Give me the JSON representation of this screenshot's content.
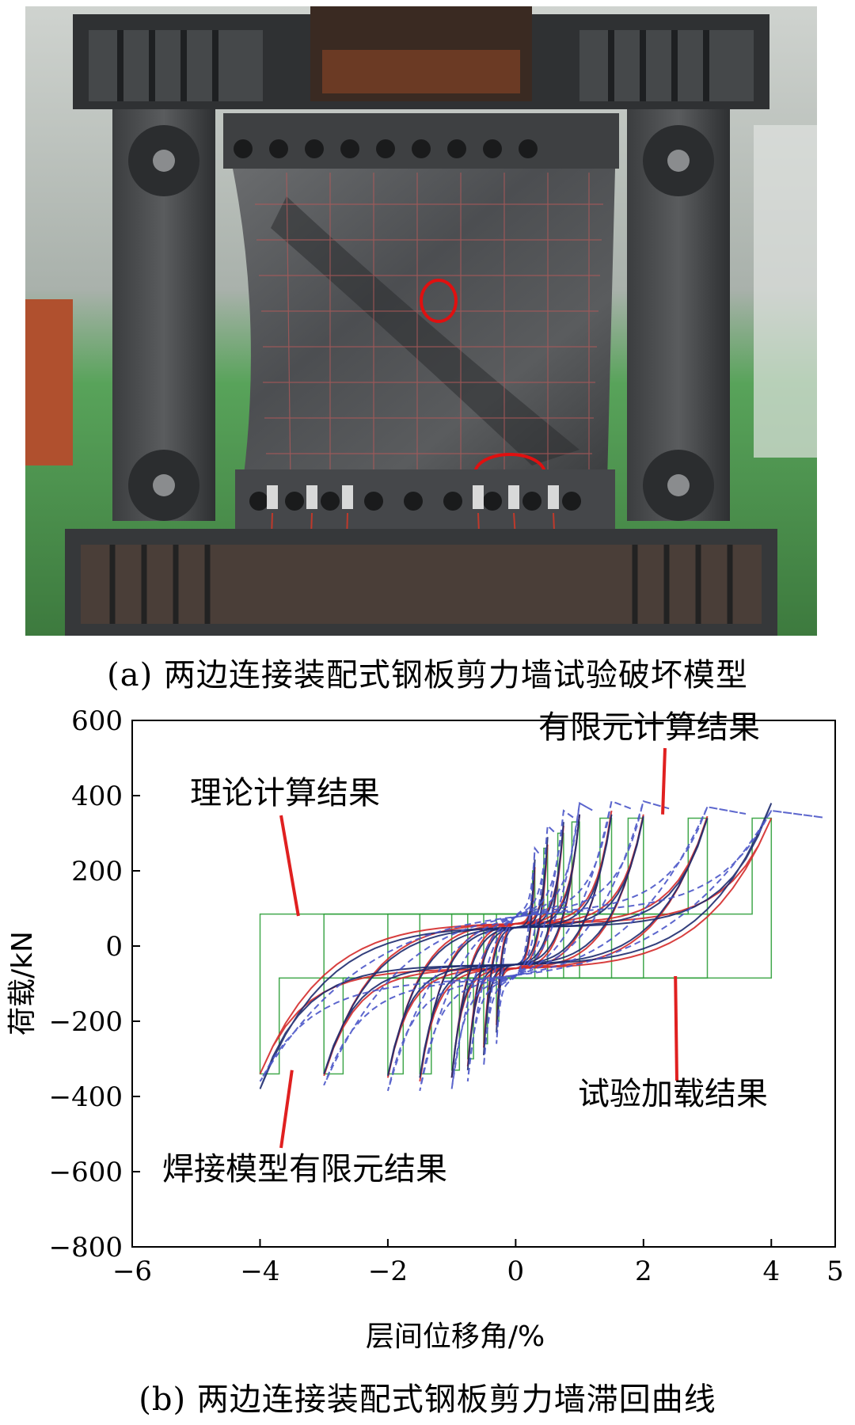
{
  "caption_a": "(a) 两边连接装配式钢板剪力墙试验破坏模型",
  "caption_b": "(b) 两边连接装配式钢板剪力墙滞回曲线",
  "colors": {
    "theory": "#2e9e3a",
    "fem": "#d42a2a",
    "test": "#1d2a6e",
    "welded_fem": "#4a55c8",
    "annotation_line": "#e02020",
    "marker_circle": "#e01010"
  },
  "chart_data": {
    "type": "line",
    "xlabel": "层间位移角/%",
    "ylabel": "荷载/kN",
    "xlim": [
      -6,
      5
    ],
    "ylim": [
      -800,
      600
    ],
    "xticks": [
      "−6",
      "−4",
      "−2",
      "0",
      "2",
      "4",
      "5"
    ],
    "xtick_values": [
      -6,
      -4,
      -2,
      0,
      2,
      4,
      5
    ],
    "yticks": [
      "600",
      "400",
      "200",
      "0",
      "−200",
      "−400",
      "−600",
      "−800"
    ],
    "ytick_values": [
      600,
      400,
      200,
      0,
      -200,
      -400,
      -600,
      -800
    ],
    "grid": false,
    "annotations": [
      {
        "text": "理论计算结果",
        "target": [
          -3.4,
          80
        ]
      },
      {
        "text": "有限元计算结果",
        "target": [
          2.3,
          350
        ]
      },
      {
        "text": "试验加载结果",
        "target": [
          2.5,
          -80
        ]
      },
      {
        "text": "焊接模型有限元结果",
        "target": [
          -3.5,
          -330
        ]
      }
    ],
    "amplitudes": [
      0.3,
      0.5,
      0.75,
      1.0,
      1.5,
      2.0,
      3.0,
      4.0
    ],
    "series": [
      {
        "key": "theory",
        "peak_load": [
          200,
          260,
          300,
          330,
          340,
          340,
          340,
          340
        ],
        "slip_load": 85,
        "style": "trilinear"
      },
      {
        "key": "fem",
        "peak_load": [
          210,
          270,
          320,
          350,
          360,
          350,
          345,
          340
        ],
        "slip_load": 60,
        "style": "pinched"
      },
      {
        "key": "test",
        "peak_load": [
          230,
          290,
          330,
          350,
          350,
          345,
          340,
          380
        ],
        "slip_load": 50,
        "style": "pinched"
      },
      {
        "key": "welded_fem",
        "peak_load": [
          260,
          320,
          360,
          380,
          385,
          385,
          370,
          360
        ],
        "slip_load": 90,
        "style": "full",
        "dashed": true,
        "overshoot": 5.0
      }
    ]
  }
}
